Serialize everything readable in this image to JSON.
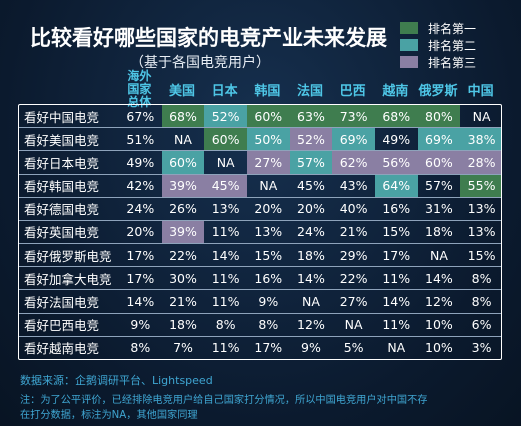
{
  "title": "比较看好哪些国家的电竞产业未来发展",
  "subtitle": "（基于各国电竞用户）",
  "legend": [
    {
      "label": "排名第一",
      "color": "#3f7d4f"
    },
    {
      "label": "排名第二",
      "color": "#4aa2a4"
    },
    {
      "label": "排名第三",
      "color": "#8a7fa3"
    }
  ],
  "source": "数据来源：企鹅调研平台、Lightspeed",
  "note_line1": "注：为了公平评价，已经排除电竞用户给自己国家打分情况，所以中国电竞用户对中国不存",
  "note_line2": "在打分数据，标注为NA，其他国家同理",
  "chart_data": {
    "type": "table",
    "columns": [
      "海外国家总体",
      "美国",
      "日本",
      "韩国",
      "法国",
      "巴西",
      "越南",
      "俄罗斯",
      "中国"
    ],
    "rows": [
      {
        "label": "看好中国电竞",
        "values": [
          "67%",
          "68%",
          "52%",
          "60%",
          "63%",
          "73%",
          "68%",
          "80%",
          "NA"
        ],
        "rank": [
          0,
          1,
          2,
          1,
          1,
          1,
          1,
          1,
          0
        ]
      },
      {
        "label": "看好美国电竞",
        "values": [
          "51%",
          "NA",
          "60%",
          "50%",
          "52%",
          "69%",
          "49%",
          "69%",
          "38%"
        ],
        "rank": [
          0,
          0,
          1,
          2,
          3,
          2,
          0,
          2,
          2
        ]
      },
      {
        "label": "看好日本电竞",
        "values": [
          "49%",
          "60%",
          "NA",
          "27%",
          "57%",
          "62%",
          "56%",
          "60%",
          "28%"
        ],
        "rank": [
          0,
          2,
          0,
          3,
          2,
          3,
          3,
          3,
          3
        ]
      },
      {
        "label": "看好韩国电竞",
        "values": [
          "42%",
          "39%",
          "45%",
          "NA",
          "45%",
          "43%",
          "64%",
          "57%",
          "55%"
        ],
        "rank": [
          0,
          3,
          3,
          0,
          0,
          0,
          2,
          0,
          1
        ]
      },
      {
        "label": "看好德国电竞",
        "values": [
          "24%",
          "26%",
          "13%",
          "20%",
          "20%",
          "40%",
          "16%",
          "31%",
          "13%"
        ],
        "rank": [
          0,
          0,
          0,
          0,
          0,
          0,
          0,
          0,
          0
        ]
      },
      {
        "label": "看好英国电竞",
        "values": [
          "20%",
          "39%",
          "11%",
          "13%",
          "24%",
          "21%",
          "15%",
          "18%",
          "13%"
        ],
        "rank": [
          0,
          3,
          0,
          0,
          0,
          0,
          0,
          0,
          0
        ]
      },
      {
        "label": "看好俄罗斯电竞",
        "values": [
          "17%",
          "22%",
          "14%",
          "15%",
          "18%",
          "29%",
          "17%",
          "NA",
          "15%"
        ],
        "rank": [
          0,
          0,
          0,
          0,
          0,
          0,
          0,
          0,
          0
        ]
      },
      {
        "label": "看好加拿大电竞",
        "values": [
          "17%",
          "30%",
          "11%",
          "16%",
          "14%",
          "22%",
          "11%",
          "14%",
          "8%"
        ],
        "rank": [
          0,
          0,
          0,
          0,
          0,
          0,
          0,
          0,
          0
        ]
      },
      {
        "label": "看好法国电竞",
        "values": [
          "14%",
          "21%",
          "11%",
          "9%",
          "NA",
          "27%",
          "14%",
          "12%",
          "8%"
        ],
        "rank": [
          0,
          0,
          0,
          0,
          0,
          0,
          0,
          0,
          0
        ]
      },
      {
        "label": "看好巴西电竞",
        "values": [
          "9%",
          "18%",
          "8%",
          "8%",
          "12%",
          "NA",
          "11%",
          "10%",
          "6%"
        ],
        "rank": [
          0,
          0,
          0,
          0,
          0,
          0,
          0,
          0,
          0
        ]
      },
      {
        "label": "看好越南电竞",
        "values": [
          "8%",
          "7%",
          "11%",
          "17%",
          "9%",
          "5%",
          "NA",
          "10%",
          "3%"
        ],
        "rank": [
          0,
          0,
          0,
          0,
          0,
          0,
          0,
          0,
          0
        ]
      }
    ]
  }
}
